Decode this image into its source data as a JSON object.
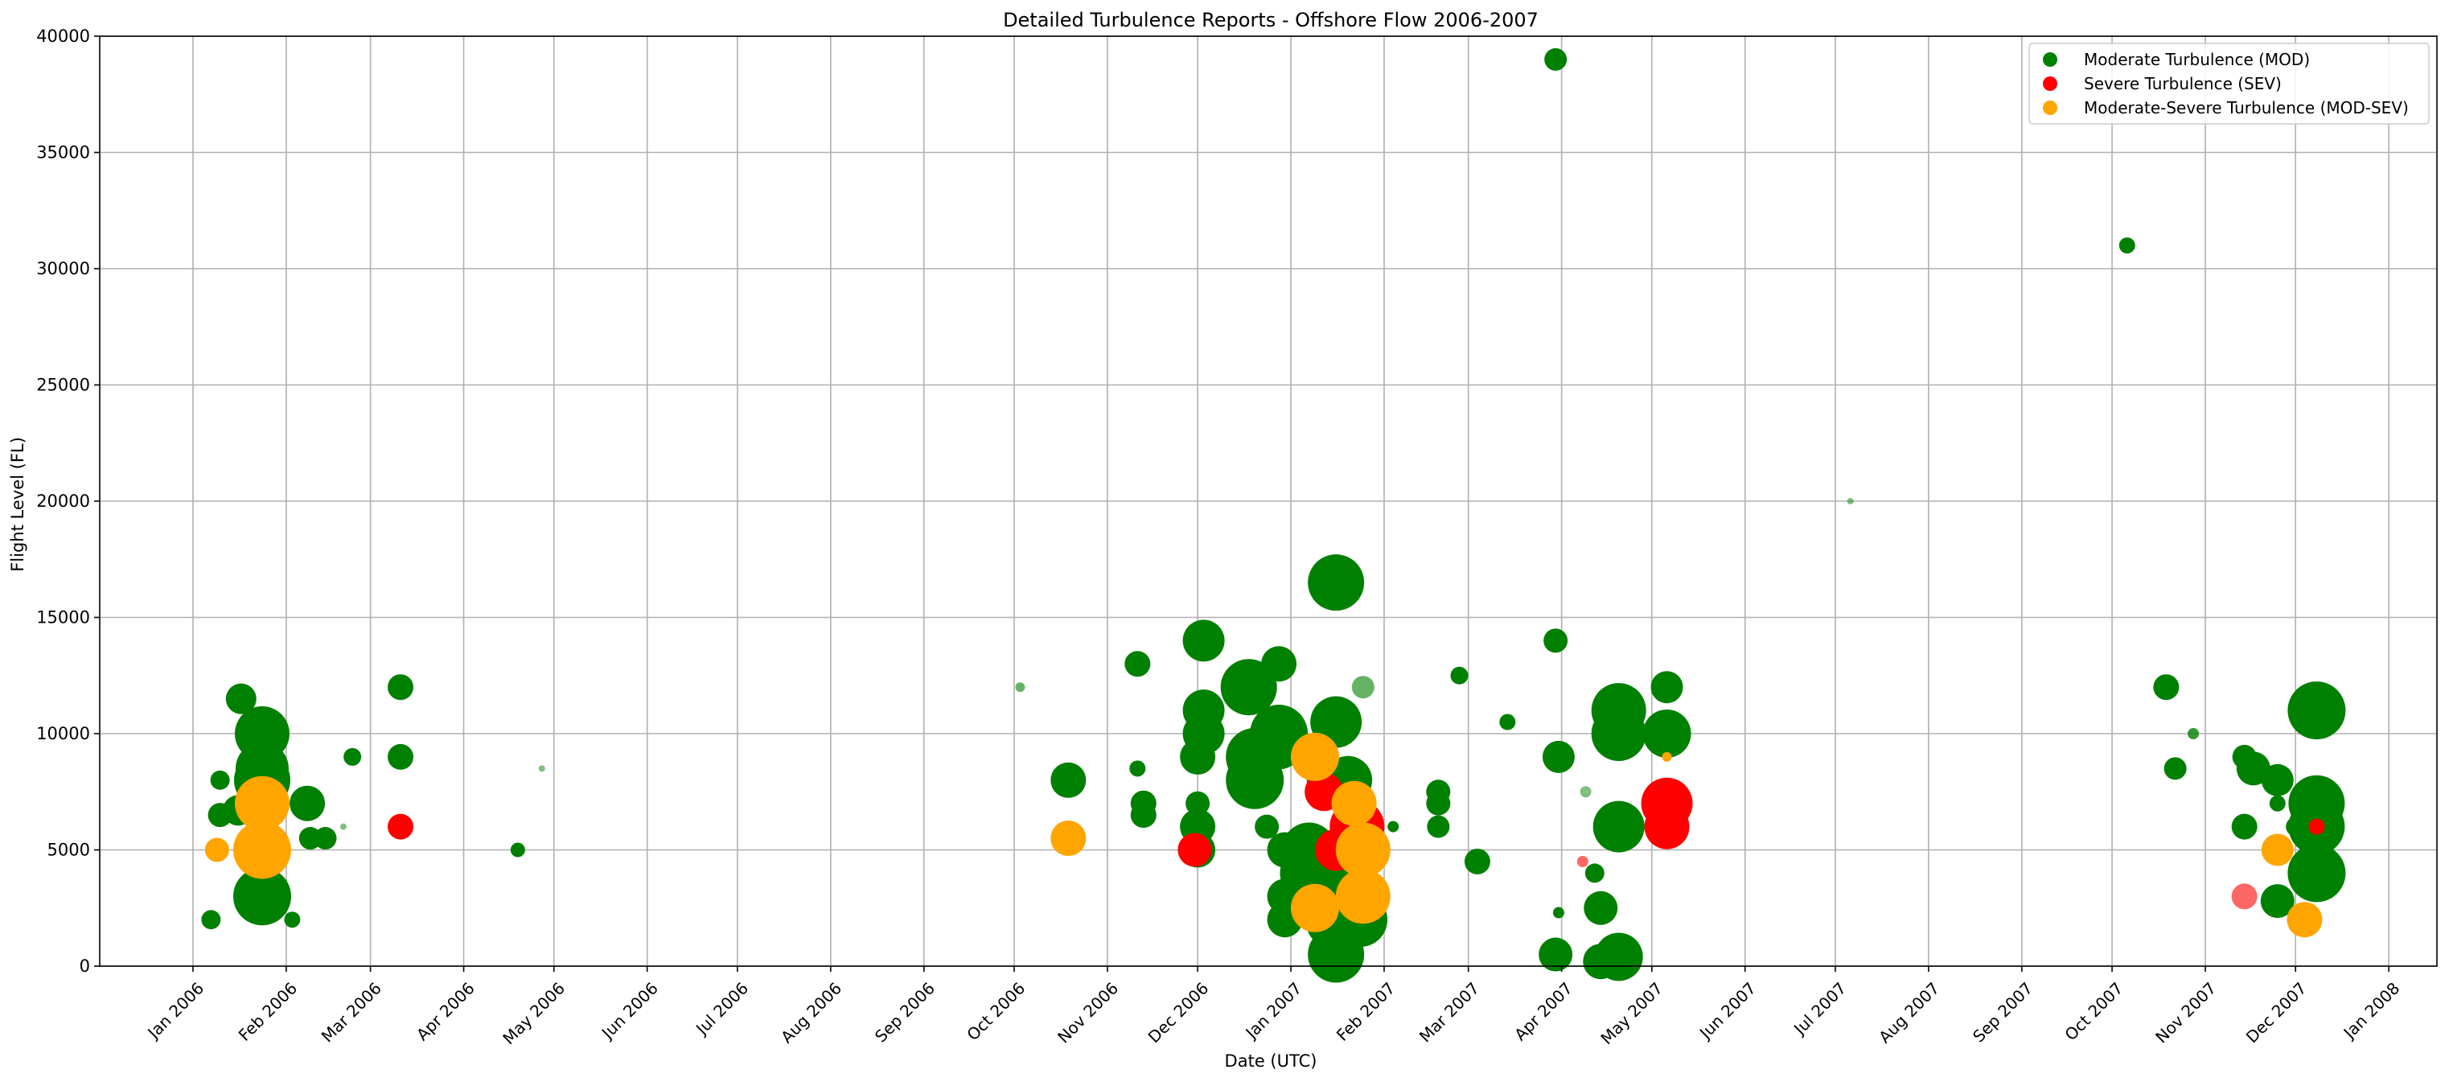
{
  "chart_data": {
    "type": "scatter",
    "title": "Detailed Turbulence Reports - Offshore Flow 2006-2007",
    "xlabel": "Date (UTC)",
    "ylabel": "Flight Level (FL)",
    "xlim": [
      "2005-12-01",
      "2008-01-17"
    ],
    "ylim": [
      0,
      40000
    ],
    "grid": true,
    "legend_position": "top-right",
    "x_ticks": [
      "2006-01-01",
      "2006-02-01",
      "2006-03-01",
      "2006-04-01",
      "2006-05-01",
      "2006-06-01",
      "2006-07-01",
      "2006-08-01",
      "2006-09-01",
      "2006-10-01",
      "2006-11-01",
      "2006-12-01",
      "2007-01-01",
      "2007-02-01",
      "2007-03-01",
      "2007-04-01",
      "2007-05-01",
      "2007-06-01",
      "2007-07-01",
      "2007-08-01",
      "2007-09-01",
      "2007-10-01",
      "2007-11-01",
      "2007-12-01",
      "2008-01-01"
    ],
    "x_tick_labels": [
      "Jan 2006",
      "Feb 2006",
      "Mar 2006",
      "Apr 2006",
      "May 2006",
      "Jun 2006",
      "Jul 2006",
      "Aug 2006",
      "Sep 2006",
      "Oct 2006",
      "Nov 2006",
      "Dec 2006",
      "Jan 2007",
      "Feb 2007",
      "Mar 2007",
      "Apr 2007",
      "May 2007",
      "Jun 2007",
      "Jul 2007",
      "Aug 2007",
      "Sep 2007",
      "Oct 2007",
      "Nov 2007",
      "Dec 2007",
      "Jan 2008"
    ],
    "y_ticks": [
      0,
      5000,
      10000,
      15000,
      20000,
      25000,
      30000,
      35000,
      40000
    ],
    "y_tick_labels": [
      "0",
      "5000",
      "10000",
      "15000",
      "20000",
      "25000",
      "30000",
      "35000",
      "40000"
    ],
    "series": [
      {
        "name": "Moderate Turbulence (MOD)",
        "color": "#008000",
        "points": [
          {
            "x": "2006-01-07",
            "y": 2000,
            "r": 12,
            "alpha": 1
          },
          {
            "x": "2006-01-10",
            "y": 6500,
            "r": 15,
            "alpha": 1
          },
          {
            "x": "2006-01-10",
            "y": 8000,
            "r": 12,
            "alpha": 1
          },
          {
            "x": "2006-01-17",
            "y": 11500,
            "r": 19,
            "alpha": 1
          },
          {
            "x": "2006-01-16",
            "y": 6700,
            "r": 19,
            "alpha": 1
          },
          {
            "x": "2006-01-24",
            "y": 10000,
            "r": 34,
            "alpha": 1
          },
          {
            "x": "2006-01-24",
            "y": 8500,
            "r": 33,
            "alpha": 1
          },
          {
            "x": "2006-01-24",
            "y": 8000,
            "r": 35,
            "alpha": 1
          },
          {
            "x": "2006-01-24",
            "y": 3000,
            "r": 36,
            "alpha": 1
          },
          {
            "x": "2006-02-03",
            "y": 2000,
            "r": 10,
            "alpha": 1
          },
          {
            "x": "2006-02-08",
            "y": 7000,
            "r": 22,
            "alpha": 1
          },
          {
            "x": "2006-02-09",
            "y": 5500,
            "r": 14,
            "alpha": 1
          },
          {
            "x": "2006-02-14",
            "y": 5500,
            "r": 14,
            "alpha": 1
          },
          {
            "x": "2006-02-20",
            "y": 6000,
            "r": 4,
            "alpha": 0.5
          },
          {
            "x": "2006-02-23",
            "y": 9000,
            "r": 11,
            "alpha": 1
          },
          {
            "x": "2006-03-11",
            "y": 12000,
            "r": 16,
            "alpha": 1
          },
          {
            "x": "2006-03-11",
            "y": 9000,
            "r": 16,
            "alpha": 1
          },
          {
            "x": "2006-04-19",
            "y": 5000,
            "r": 9,
            "alpha": 1
          },
          {
            "x": "2006-04-27",
            "y": 8500,
            "r": 4,
            "alpha": 0.5
          },
          {
            "x": "2006-10-03",
            "y": 12000,
            "r": 6,
            "alpha": 0.6
          },
          {
            "x": "2006-10-19",
            "y": 8000,
            "r": 22,
            "alpha": 1
          },
          {
            "x": "2006-11-11",
            "y": 13000,
            "r": 16,
            "alpha": 1
          },
          {
            "x": "2006-11-11",
            "y": 8500,
            "r": 10,
            "alpha": 1
          },
          {
            "x": "2006-11-13",
            "y": 7000,
            "r": 16,
            "alpha": 1
          },
          {
            "x": "2006-11-13",
            "y": 6500,
            "r": 16,
            "alpha": 1
          },
          {
            "x": "2006-12-01",
            "y": 7000,
            "r": 15,
            "alpha": 1
          },
          {
            "x": "2006-12-01",
            "y": 6000,
            "r": 22,
            "alpha": 1
          },
          {
            "x": "2006-12-01",
            "y": 5000,
            "r": 22,
            "alpha": 1
          },
          {
            "x": "2006-12-01",
            "y": 9000,
            "r": 22,
            "alpha": 1
          },
          {
            "x": "2006-12-03",
            "y": 14000,
            "r": 26,
            "alpha": 1
          },
          {
            "x": "2006-12-03",
            "y": 11000,
            "r": 26,
            "alpha": 1
          },
          {
            "x": "2006-12-03",
            "y": 10000,
            "r": 26,
            "alpha": 1
          },
          {
            "x": "2006-12-18",
            "y": 12000,
            "r": 35,
            "alpha": 1
          },
          {
            "x": "2006-12-20",
            "y": 9000,
            "r": 36,
            "alpha": 1
          },
          {
            "x": "2006-12-20",
            "y": 8000,
            "r": 36,
            "alpha": 1
          },
          {
            "x": "2006-12-24",
            "y": 6000,
            "r": 15,
            "alpha": 1
          },
          {
            "x": "2006-12-28",
            "y": 13000,
            "r": 22,
            "alpha": 1
          },
          {
            "x": "2006-12-28",
            "y": 10000,
            "r": 36,
            "alpha": 1
          },
          {
            "x": "2006-12-28",
            "y": 9500,
            "r": 30,
            "alpha": 1
          },
          {
            "x": "2006-12-30",
            "y": 5000,
            "r": 22,
            "alpha": 1
          },
          {
            "x": "2006-12-30",
            "y": 3000,
            "r": 22,
            "alpha": 1
          },
          {
            "x": "2006-12-30",
            "y": 2000,
            "r": 22,
            "alpha": 1
          },
          {
            "x": "2007-01-07",
            "y": 5000,
            "r": 34,
            "alpha": 1
          },
          {
            "x": "2007-01-07",
            "y": 4000,
            "r": 36,
            "alpha": 1
          },
          {
            "x": "2007-01-10",
            "y": 8000,
            "r": 14,
            "alpha": 1
          },
          {
            "x": "2007-01-16",
            "y": 16500,
            "r": 35,
            "alpha": 1
          },
          {
            "x": "2007-01-16",
            "y": 10500,
            "r": 32,
            "alpha": 1
          },
          {
            "x": "2007-01-16",
            "y": 2000,
            "r": 38,
            "alpha": 1
          },
          {
            "x": "2007-01-16",
            "y": 500,
            "r": 35,
            "alpha": 1
          },
          {
            "x": "2007-01-20",
            "y": 8000,
            "r": 30,
            "alpha": 1
          },
          {
            "x": "2007-01-20",
            "y": 5000,
            "r": 28,
            "alpha": 1
          },
          {
            "x": "2007-01-20",
            "y": 4000,
            "r": 30,
            "alpha": 1
          },
          {
            "x": "2007-01-24",
            "y": 2000,
            "r": 34,
            "alpha": 1
          },
          {
            "x": "2007-01-25",
            "y": 12000,
            "r": 14,
            "alpha": 0.6
          },
          {
            "x": "2007-02-04",
            "y": 6000,
            "r": 7,
            "alpha": 1
          },
          {
            "x": "2007-02-19",
            "y": 7500,
            "r": 15,
            "alpha": 1
          },
          {
            "x": "2007-02-19",
            "y": 7000,
            "r": 15,
            "alpha": 1
          },
          {
            "x": "2007-02-19",
            "y": 6000,
            "r": 14,
            "alpha": 1
          },
          {
            "x": "2007-02-26",
            "y": 12500,
            "r": 11,
            "alpha": 1
          },
          {
            "x": "2007-03-04",
            "y": 4500,
            "r": 16,
            "alpha": 1
          },
          {
            "x": "2007-03-14",
            "y": 10500,
            "r": 10,
            "alpha": 1
          },
          {
            "x": "2007-03-30",
            "y": 39000,
            "r": 14,
            "alpha": 1
          },
          {
            "x": "2007-03-30",
            "y": 14000,
            "r": 15,
            "alpha": 1
          },
          {
            "x": "2007-03-31",
            "y": 9000,
            "r": 20,
            "alpha": 1
          },
          {
            "x": "2007-03-30",
            "y": 500,
            "r": 21,
            "alpha": 1
          },
          {
            "x": "2007-03-31",
            "y": 2300,
            "r": 7,
            "alpha": 1
          },
          {
            "x": "2007-04-09",
            "y": 7500,
            "r": 7,
            "alpha": 0.5
          },
          {
            "x": "2007-04-14",
            "y": 2500,
            "r": 21,
            "alpha": 1
          },
          {
            "x": "2007-04-12",
            "y": 4000,
            "r": 12,
            "alpha": 1
          },
          {
            "x": "2007-04-14",
            "y": 200,
            "r": 22,
            "alpha": 1
          },
          {
            "x": "2007-04-20",
            "y": 11000,
            "r": 34,
            "alpha": 1
          },
          {
            "x": "2007-04-20",
            "y": 10000,
            "r": 34,
            "alpha": 1
          },
          {
            "x": "2007-04-20",
            "y": 6000,
            "r": 32,
            "alpha": 1
          },
          {
            "x": "2007-04-20",
            "y": 400,
            "r": 30,
            "alpha": 1
          },
          {
            "x": "2007-05-06",
            "y": 12000,
            "r": 20,
            "alpha": 1
          },
          {
            "x": "2007-05-06",
            "y": 10000,
            "r": 30,
            "alpha": 1
          },
          {
            "x": "2007-07-06",
            "y": 20000,
            "r": 4,
            "alpha": 0.5
          },
          {
            "x": "2007-10-06",
            "y": 31000,
            "r": 10,
            "alpha": 1
          },
          {
            "x": "2007-10-19",
            "y": 12000,
            "r": 16,
            "alpha": 1
          },
          {
            "x": "2007-10-22",
            "y": 8500,
            "r": 14,
            "alpha": 1
          },
          {
            "x": "2007-10-28",
            "y": 10000,
            "r": 7,
            "alpha": 0.8
          },
          {
            "x": "2007-11-14",
            "y": 9000,
            "r": 15,
            "alpha": 1
          },
          {
            "x": "2007-11-14",
            "y": 6000,
            "r": 16,
            "alpha": 1
          },
          {
            "x": "2007-11-17",
            "y": 8500,
            "r": 21,
            "alpha": 1
          },
          {
            "x": "2007-11-25",
            "y": 8000,
            "r": 20,
            "alpha": 1
          },
          {
            "x": "2007-11-25",
            "y": 7000,
            "r": 10,
            "alpha": 1
          },
          {
            "x": "2007-11-25",
            "y": 2800,
            "r": 21,
            "alpha": 1
          },
          {
            "x": "2007-12-01",
            "y": 6000,
            "r": 12,
            "alpha": 1
          },
          {
            "x": "2007-12-08",
            "y": 11000,
            "r": 36,
            "alpha": 1
          },
          {
            "x": "2007-12-08",
            "y": 7000,
            "r": 35,
            "alpha": 1
          },
          {
            "x": "2007-12-08",
            "y": 6000,
            "r": 35,
            "alpha": 1
          },
          {
            "x": "2007-12-08",
            "y": 4000,
            "r": 36,
            "alpha": 1
          }
        ]
      },
      {
        "name": "Severe Turbulence (SEV)",
        "color": "#ff0000",
        "points": [
          {
            "x": "2006-03-11",
            "y": 6000,
            "r": 16,
            "alpha": 1
          },
          {
            "x": "2006-11-30",
            "y": 5000,
            "r": 21,
            "alpha": 1
          },
          {
            "x": "2007-01-12",
            "y": 7500,
            "r": 24,
            "alpha": 1
          },
          {
            "x": "2007-01-16",
            "y": 5000,
            "r": 26,
            "alpha": 1
          },
          {
            "x": "2007-01-23",
            "y": 6000,
            "r": 34,
            "alpha": 1
          },
          {
            "x": "2007-04-08",
            "y": 4500,
            "r": 7,
            "alpha": 0.6
          },
          {
            "x": "2007-05-06",
            "y": 7000,
            "r": 32,
            "alpha": 1
          },
          {
            "x": "2007-05-06",
            "y": 6000,
            "r": 28,
            "alpha": 1
          },
          {
            "x": "2007-11-14",
            "y": 3000,
            "r": 16,
            "alpha": 0.6
          },
          {
            "x": "2007-11-25",
            "y": 5000,
            "r": 14,
            "alpha": 1
          },
          {
            "x": "2007-12-08",
            "y": 6000,
            "r": 10,
            "alpha": 1
          }
        ]
      },
      {
        "name": "Moderate-Severe Turbulence (MOD-SEV)",
        "color": "#ffa500",
        "points": [
          {
            "x": "2006-01-09",
            "y": 5000,
            "r": 15,
            "alpha": 1
          },
          {
            "x": "2006-01-24",
            "y": 7000,
            "r": 34,
            "alpha": 1
          },
          {
            "x": "2006-01-24",
            "y": 5000,
            "r": 36,
            "alpha": 1
          },
          {
            "x": "2006-10-19",
            "y": 5500,
            "r": 22,
            "alpha": 1
          },
          {
            "x": "2007-01-09",
            "y": 9000,
            "r": 30,
            "alpha": 1
          },
          {
            "x": "2007-01-09",
            "y": 2500,
            "r": 30,
            "alpha": 1
          },
          {
            "x": "2007-01-22",
            "y": 7000,
            "r": 28,
            "alpha": 1
          },
          {
            "x": "2007-01-25",
            "y": 5000,
            "r": 34,
            "alpha": 1
          },
          {
            "x": "2007-01-25",
            "y": 3000,
            "r": 34,
            "alpha": 1
          },
          {
            "x": "2007-05-06",
            "y": 9000,
            "r": 6,
            "alpha": 1
          },
          {
            "x": "2007-11-25",
            "y": 5000,
            "r": 20,
            "alpha": 1
          },
          {
            "x": "2007-12-04",
            "y": 2000,
            "r": 22,
            "alpha": 1
          }
        ]
      }
    ]
  }
}
